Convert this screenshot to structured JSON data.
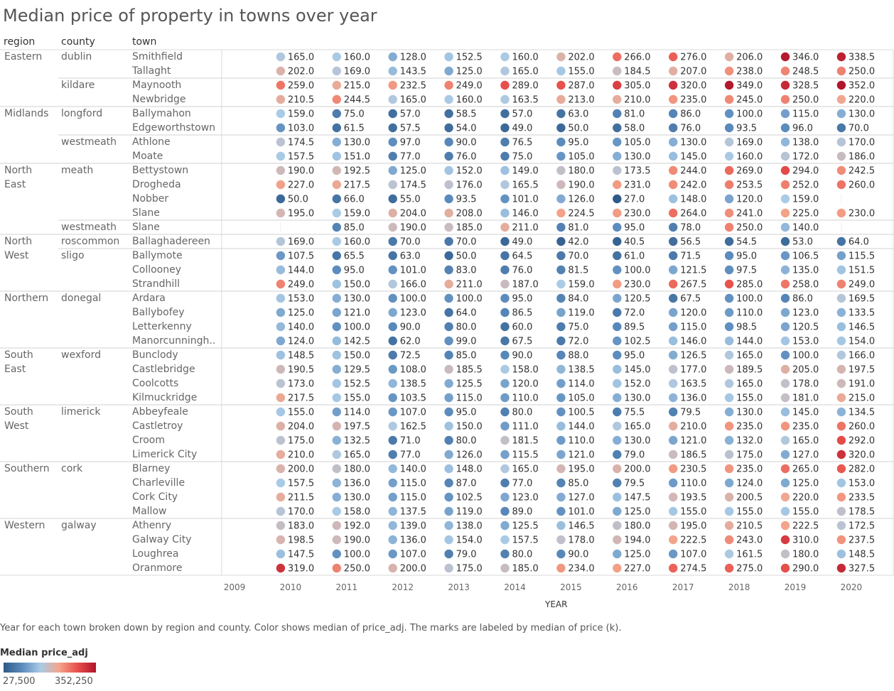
{
  "title": "Median price of property in towns over year",
  "headers": {
    "region": "region",
    "county": "county",
    "town": "town"
  },
  "caption": "Year for each town broken down by region and county.  Color shows median of price_adj.  The marks are labeled by median of price (k).",
  "legend": {
    "title": "Median price_adj",
    "min_label": "27,500",
    "max_label": "352,250",
    "min": 27500,
    "max": 352250,
    "colors": [
      "#2e5a87",
      "#5b8bbd",
      "#a9cbe6",
      "#f3a58b",
      "#e8504b",
      "#b0152b"
    ]
  },
  "chart_data": {
    "type": "scatter",
    "title": "Median price of property in towns over year",
    "xlabel": "YEAR",
    "x_ticks": [
      "2009",
      "2010",
      "2011",
      "2012",
      "2013",
      "2014",
      "2015",
      "2016",
      "2017",
      "2018",
      "2019",
      "2020",
      "2021"
    ],
    "x": [
      "2010",
      "2011",
      "2012",
      "2013",
      "2014",
      "2015",
      "2016",
      "2017",
      "2018",
      "2019",
      "2020"
    ],
    "rows": [
      {
        "region": "Eastern",
        "county": "dublin",
        "town": "Smithfield",
        "values": [
          165.0,
          160.0,
          128.0,
          152.5,
          160.0,
          202.0,
          266.0,
          276.0,
          206.0,
          346.0,
          338.5
        ]
      },
      {
        "region": "Eastern",
        "county": "dublin",
        "town": "Tallaght",
        "values": [
          202.0,
          169.0,
          143.5,
          125.0,
          165.0,
          155.0,
          184.5,
          207.0,
          238.0,
          248.5,
          250.0
        ]
      },
      {
        "region": "Eastern",
        "county": "kildare",
        "town": "Maynooth",
        "values": [
          259.0,
          215.0,
          232.5,
          249.0,
          289.0,
          287.0,
          305.0,
          320.0,
          349.0,
          328.5,
          352.0
        ]
      },
      {
        "region": "Eastern",
        "county": "kildare",
        "town": "Newbridge",
        "values": [
          210.5,
          244.5,
          165.0,
          160.0,
          163.5,
          213.0,
          210.0,
          235.0,
          245.0,
          250.0,
          220.0
        ]
      },
      {
        "region": "Midlands",
        "county": "longford",
        "town": "Ballymahon",
        "values": [
          159.0,
          75.0,
          57.0,
          58.5,
          57.0,
          63.0,
          81.0,
          86.0,
          100.0,
          115.0,
          130.0
        ]
      },
      {
        "region": "Midlands",
        "county": "longford",
        "town": "Edgeworthstown",
        "values": [
          103.0,
          61.5,
          57.5,
          54.0,
          49.0,
          50.0,
          58.0,
          76.0,
          93.5,
          96.0,
          70.0
        ]
      },
      {
        "region": "Midlands",
        "county": "westmeath",
        "town": "Athlone",
        "values": [
          174.5,
          130.0,
          97.0,
          90.0,
          76.5,
          95.0,
          105.0,
          130.0,
          169.0,
          138.0,
          170.0
        ]
      },
      {
        "region": "Midlands",
        "county": "westmeath",
        "town": "Moate",
        "values": [
          157.5,
          151.0,
          77.0,
          76.0,
          75.0,
          105.0,
          130.0,
          145.0,
          160.0,
          172.0,
          186.0
        ]
      },
      {
        "region": "North East",
        "county": "meath",
        "town": "Bettystown",
        "values": [
          190.0,
          192.5,
          125.0,
          152.0,
          149.0,
          180.0,
          173.5,
          244.0,
          269.0,
          294.0,
          242.5
        ]
      },
      {
        "region": "North East",
        "county": "meath",
        "town": "Drogheda",
        "values": [
          227.0,
          217.5,
          174.5,
          176.0,
          165.5,
          190.0,
          231.0,
          242.0,
          253.5,
          252.0,
          260.0
        ]
      },
      {
        "region": "North East",
        "county": "meath",
        "town": "Nobber",
        "values": [
          50.0,
          66.0,
          55.0,
          93.5,
          101.0,
          126.0,
          27.0,
          148.0,
          120.0,
          159.0,
          null
        ]
      },
      {
        "region": "North East",
        "county": "meath",
        "town": "Slane",
        "values": [
          195.0,
          159.0,
          204.0,
          208.0,
          146.0,
          224.5,
          230.0,
          264.0,
          241.0,
          225.0,
          230.0
        ]
      },
      {
        "region": "North East",
        "county": "westmeath",
        "town": "Slane",
        "values": [
          null,
          85.0,
          190.0,
          185.0,
          211.0,
          81.0,
          95.0,
          78.0,
          250.0,
          140.0,
          null
        ]
      },
      {
        "region": "North West",
        "county": "roscommon",
        "town": "Ballaghadereen",
        "values": [
          169.0,
          160.0,
          70.0,
          70.0,
          49.0,
          42.0,
          40.5,
          56.5,
          54.5,
          53.0,
          64.0
        ]
      },
      {
        "region": "North West",
        "county": "sligo",
        "town": "Ballymote",
        "values": [
          107.5,
          65.5,
          63.0,
          50.0,
          64.5,
          70.0,
          61.0,
          71.5,
          95.0,
          106.5,
          115.5
        ]
      },
      {
        "region": "North West",
        "county": "sligo",
        "town": "Collooney",
        "values": [
          144.0,
          95.0,
          101.0,
          83.0,
          76.0,
          81.5,
          100.0,
          121.5,
          97.5,
          135.0,
          151.5
        ]
      },
      {
        "region": "North West",
        "county": "sligo",
        "town": "Strandhill",
        "values": [
          249.0,
          150.0,
          166.0,
          211.0,
          187.0,
          159.0,
          230.0,
          267.5,
          285.0,
          258.0,
          249.0
        ]
      },
      {
        "region": "Northern",
        "county": "donegal",
        "town": "Ardara",
        "values": [
          153.0,
          130.0,
          100.0,
          100.0,
          95.0,
          84.0,
          120.5,
          67.5,
          100.0,
          86.0,
          169.5
        ]
      },
      {
        "region": "Northern",
        "county": "donegal",
        "town": "Ballybofey",
        "values": [
          125.0,
          121.0,
          123.0,
          64.0,
          86.5,
          119.0,
          72.0,
          120.0,
          110.0,
          123.0,
          133.5
        ]
      },
      {
        "region": "Northern",
        "county": "donegal",
        "town": "Letterkenny",
        "values": [
          140.0,
          100.0,
          90.0,
          80.0,
          60.0,
          75.0,
          89.5,
          115.0,
          98.5,
          120.5,
          146.5
        ]
      },
      {
        "region": "Northern",
        "county": "donegal",
        "town": "Manorcunningh..",
        "values": [
          124.0,
          142.5,
          62.0,
          99.0,
          67.5,
          72.0,
          102.5,
          146.0,
          144.0,
          153.0,
          154.0
        ]
      },
      {
        "region": "South East",
        "county": "wexford",
        "town": "Bunclody",
        "values": [
          148.5,
          150.0,
          72.5,
          85.0,
          90.0,
          88.0,
          95.0,
          126.5,
          165.0,
          100.0,
          166.0
        ]
      },
      {
        "region": "South East",
        "county": "wexford",
        "town": "Castlebridge",
        "values": [
          190.5,
          129.5,
          108.0,
          185.5,
          158.0,
          138.5,
          145.0,
          177.0,
          189.5,
          205.0,
          197.5
        ]
      },
      {
        "region": "South East",
        "county": "wexford",
        "town": "Coolcotts",
        "values": [
          173.0,
          152.5,
          138.5,
          125.5,
          120.0,
          114.0,
          152.0,
          163.5,
          165.0,
          178.0,
          191.0
        ]
      },
      {
        "region": "South East",
        "county": "wexford",
        "town": "Kilmuckridge",
        "values": [
          217.5,
          155.0,
          103.5,
          115.0,
          110.0,
          105.0,
          130.0,
          136.0,
          155.0,
          181.0,
          215.0
        ]
      },
      {
        "region": "South West",
        "county": "limerick",
        "town": "Abbeyfeale",
        "values": [
          155.0,
          114.0,
          107.0,
          95.0,
          80.0,
          100.5,
          75.5,
          79.5,
          130.0,
          145.0,
          134.5
        ]
      },
      {
        "region": "South West",
        "county": "limerick",
        "town": "Castletroy",
        "values": [
          204.0,
          197.5,
          162.5,
          150.0,
          111.0,
          144.0,
          165.0,
          210.0,
          235.0,
          235.0,
          260.0
        ]
      },
      {
        "region": "South West",
        "county": "limerick",
        "town": "Croom",
        "values": [
          175.0,
          132.5,
          71.0,
          80.0,
          181.5,
          110.0,
          130.0,
          121.0,
          132.0,
          165.0,
          292.0
        ]
      },
      {
        "region": "South West",
        "county": "limerick",
        "town": "Limerick City",
        "values": [
          210.0,
          165.0,
          77.0,
          126.0,
          115.5,
          121.0,
          79.0,
          186.5,
          175.0,
          127.0,
          320.0
        ]
      },
      {
        "region": "Southern",
        "county": "cork",
        "town": "Blarney",
        "values": [
          200.0,
          180.0,
          140.0,
          148.0,
          165.0,
          195.0,
          200.0,
          230.5,
          235.0,
          265.0,
          282.0
        ]
      },
      {
        "region": "Southern",
        "county": "cork",
        "town": "Charleville",
        "values": [
          157.5,
          136.0,
          115.0,
          87.0,
          77.0,
          85.0,
          79.5,
          110.0,
          124.0,
          125.0,
          153.0
        ]
      },
      {
        "region": "Southern",
        "county": "cork",
        "town": "Cork City",
        "values": [
          211.5,
          130.0,
          115.0,
          102.5,
          123.0,
          127.0,
          147.5,
          193.5,
          200.5,
          220.0,
          233.5
        ]
      },
      {
        "region": "Southern",
        "county": "cork",
        "town": "Mallow",
        "values": [
          170.0,
          158.0,
          137.5,
          119.0,
          89.0,
          101.0,
          125.0,
          155.0,
          155.0,
          155.0,
          178.5
        ]
      },
      {
        "region": "Western",
        "county": "galway",
        "town": "Athenry",
        "values": [
          183.0,
          192.0,
          139.0,
          138.0,
          125.5,
          146.5,
          180.0,
          195.0,
          210.5,
          222.5,
          172.5
        ]
      },
      {
        "region": "Western",
        "county": "galway",
        "town": "Galway City",
        "values": [
          198.5,
          190.0,
          136.0,
          154.0,
          157.5,
          178.0,
          194.0,
          222.5,
          243.0,
          310.0,
          237.5
        ]
      },
      {
        "region": "Western",
        "county": "galway",
        "town": "Loughrea",
        "values": [
          147.5,
          100.0,
          107.0,
          79.0,
          80.0,
          90.0,
          125.0,
          107.0,
          161.5,
          180.0,
          148.5
        ]
      },
      {
        "region": "Western",
        "county": "galway",
        "town": "Oranmore",
        "values": [
          319.0,
          250.0,
          200.0,
          175.0,
          185.0,
          234.0,
          227.0,
          274.5,
          275.0,
          290.0,
          327.5
        ]
      }
    ],
    "region_labels": [
      {
        "lines": [
          "Eastern"
        ],
        "rows": [
          0,
          3
        ]
      },
      {
        "lines": [
          "Midlands"
        ],
        "rows": [
          4,
          7
        ]
      },
      {
        "lines": [
          "North",
          "East"
        ],
        "rows": [
          8,
          12
        ]
      },
      {
        "lines": [
          "North",
          "West"
        ],
        "rows": [
          13,
          16
        ]
      },
      {
        "lines": [
          "Northern"
        ],
        "rows": [
          17,
          20
        ]
      },
      {
        "lines": [
          "South",
          "East"
        ],
        "rows": [
          21,
          24
        ]
      },
      {
        "lines": [
          "South",
          "West"
        ],
        "rows": [
          25,
          28
        ]
      },
      {
        "lines": [
          "Southern"
        ],
        "rows": [
          29,
          32
        ]
      },
      {
        "lines": [
          "Western"
        ],
        "rows": [
          33,
          36
        ]
      }
    ],
    "county_labels": [
      {
        "text": "dublin",
        "rows": [
          0,
          1
        ]
      },
      {
        "text": "kildare",
        "rows": [
          2,
          3
        ]
      },
      {
        "text": "longford",
        "rows": [
          4,
          5
        ]
      },
      {
        "text": "westmeath",
        "rows": [
          6,
          7
        ]
      },
      {
        "text": "meath",
        "rows": [
          8,
          11
        ]
      },
      {
        "text": "westmeath",
        "rows": [
          12,
          12
        ]
      },
      {
        "text": "roscommon",
        "rows": [
          13,
          13
        ]
      },
      {
        "text": "sligo",
        "rows": [
          14,
          16
        ]
      },
      {
        "text": "donegal",
        "rows": [
          17,
          20
        ]
      },
      {
        "text": "wexford",
        "rows": [
          21,
          24
        ]
      },
      {
        "text": "limerick",
        "rows": [
          25,
          28
        ]
      },
      {
        "text": "cork",
        "rows": [
          29,
          32
        ]
      },
      {
        "text": "galway",
        "rows": [
          33,
          36
        ]
      }
    ]
  }
}
